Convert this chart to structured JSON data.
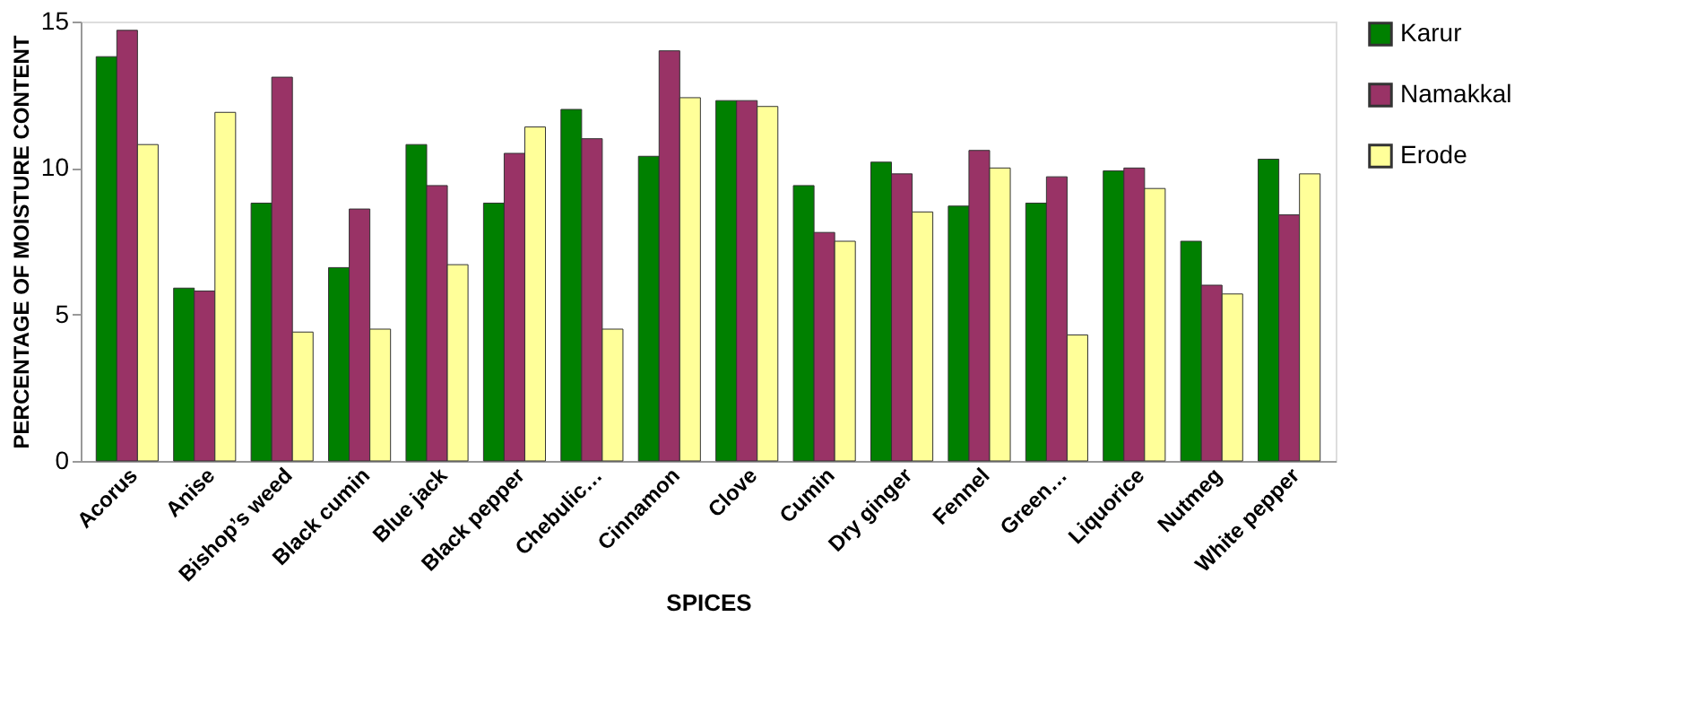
{
  "chart_data": {
    "type": "bar",
    "xlabel": "SPICES",
    "ylabel": "PERCENTAGE OF MOISTURE CONTENT",
    "categories": [
      "Acorus",
      "Anise",
      "Bishop’s weed",
      "Black cumin",
      "Blue jack",
      "Black pepper",
      "Chebulic…",
      "Cinnamon",
      "Clove",
      "Cumin",
      "Dry ginger",
      "Fennel",
      "Green…",
      "Liquorice",
      "Nutmeg",
      "White pepper"
    ],
    "series": [
      {
        "name": "Karur",
        "color": "#008000",
        "values": [
          13.8,
          5.9,
          8.8,
          6.6,
          10.8,
          8.8,
          12.0,
          10.4,
          12.3,
          9.4,
          10.2,
          8.7,
          8.8,
          9.9,
          7.5,
          10.3
        ]
      },
      {
        "name": "Namakkal",
        "color": "#993366",
        "values": [
          14.7,
          5.8,
          13.1,
          8.6,
          9.4,
          10.5,
          11.0,
          14.0,
          12.3,
          7.8,
          9.8,
          10.6,
          9.7,
          10.0,
          6.0,
          8.4
        ]
      },
      {
        "name": "Erode",
        "color": "#ffff99",
        "values": [
          10.8,
          11.9,
          4.4,
          4.5,
          6.7,
          11.4,
          4.5,
          12.4,
          12.1,
          7.5,
          8.5,
          10.0,
          4.3,
          9.3,
          5.7,
          9.8
        ]
      }
    ],
    "ylim": [
      0,
      15
    ],
    "yticks": [
      0,
      5,
      10,
      15
    ],
    "grid": false,
    "legend": "right"
  }
}
